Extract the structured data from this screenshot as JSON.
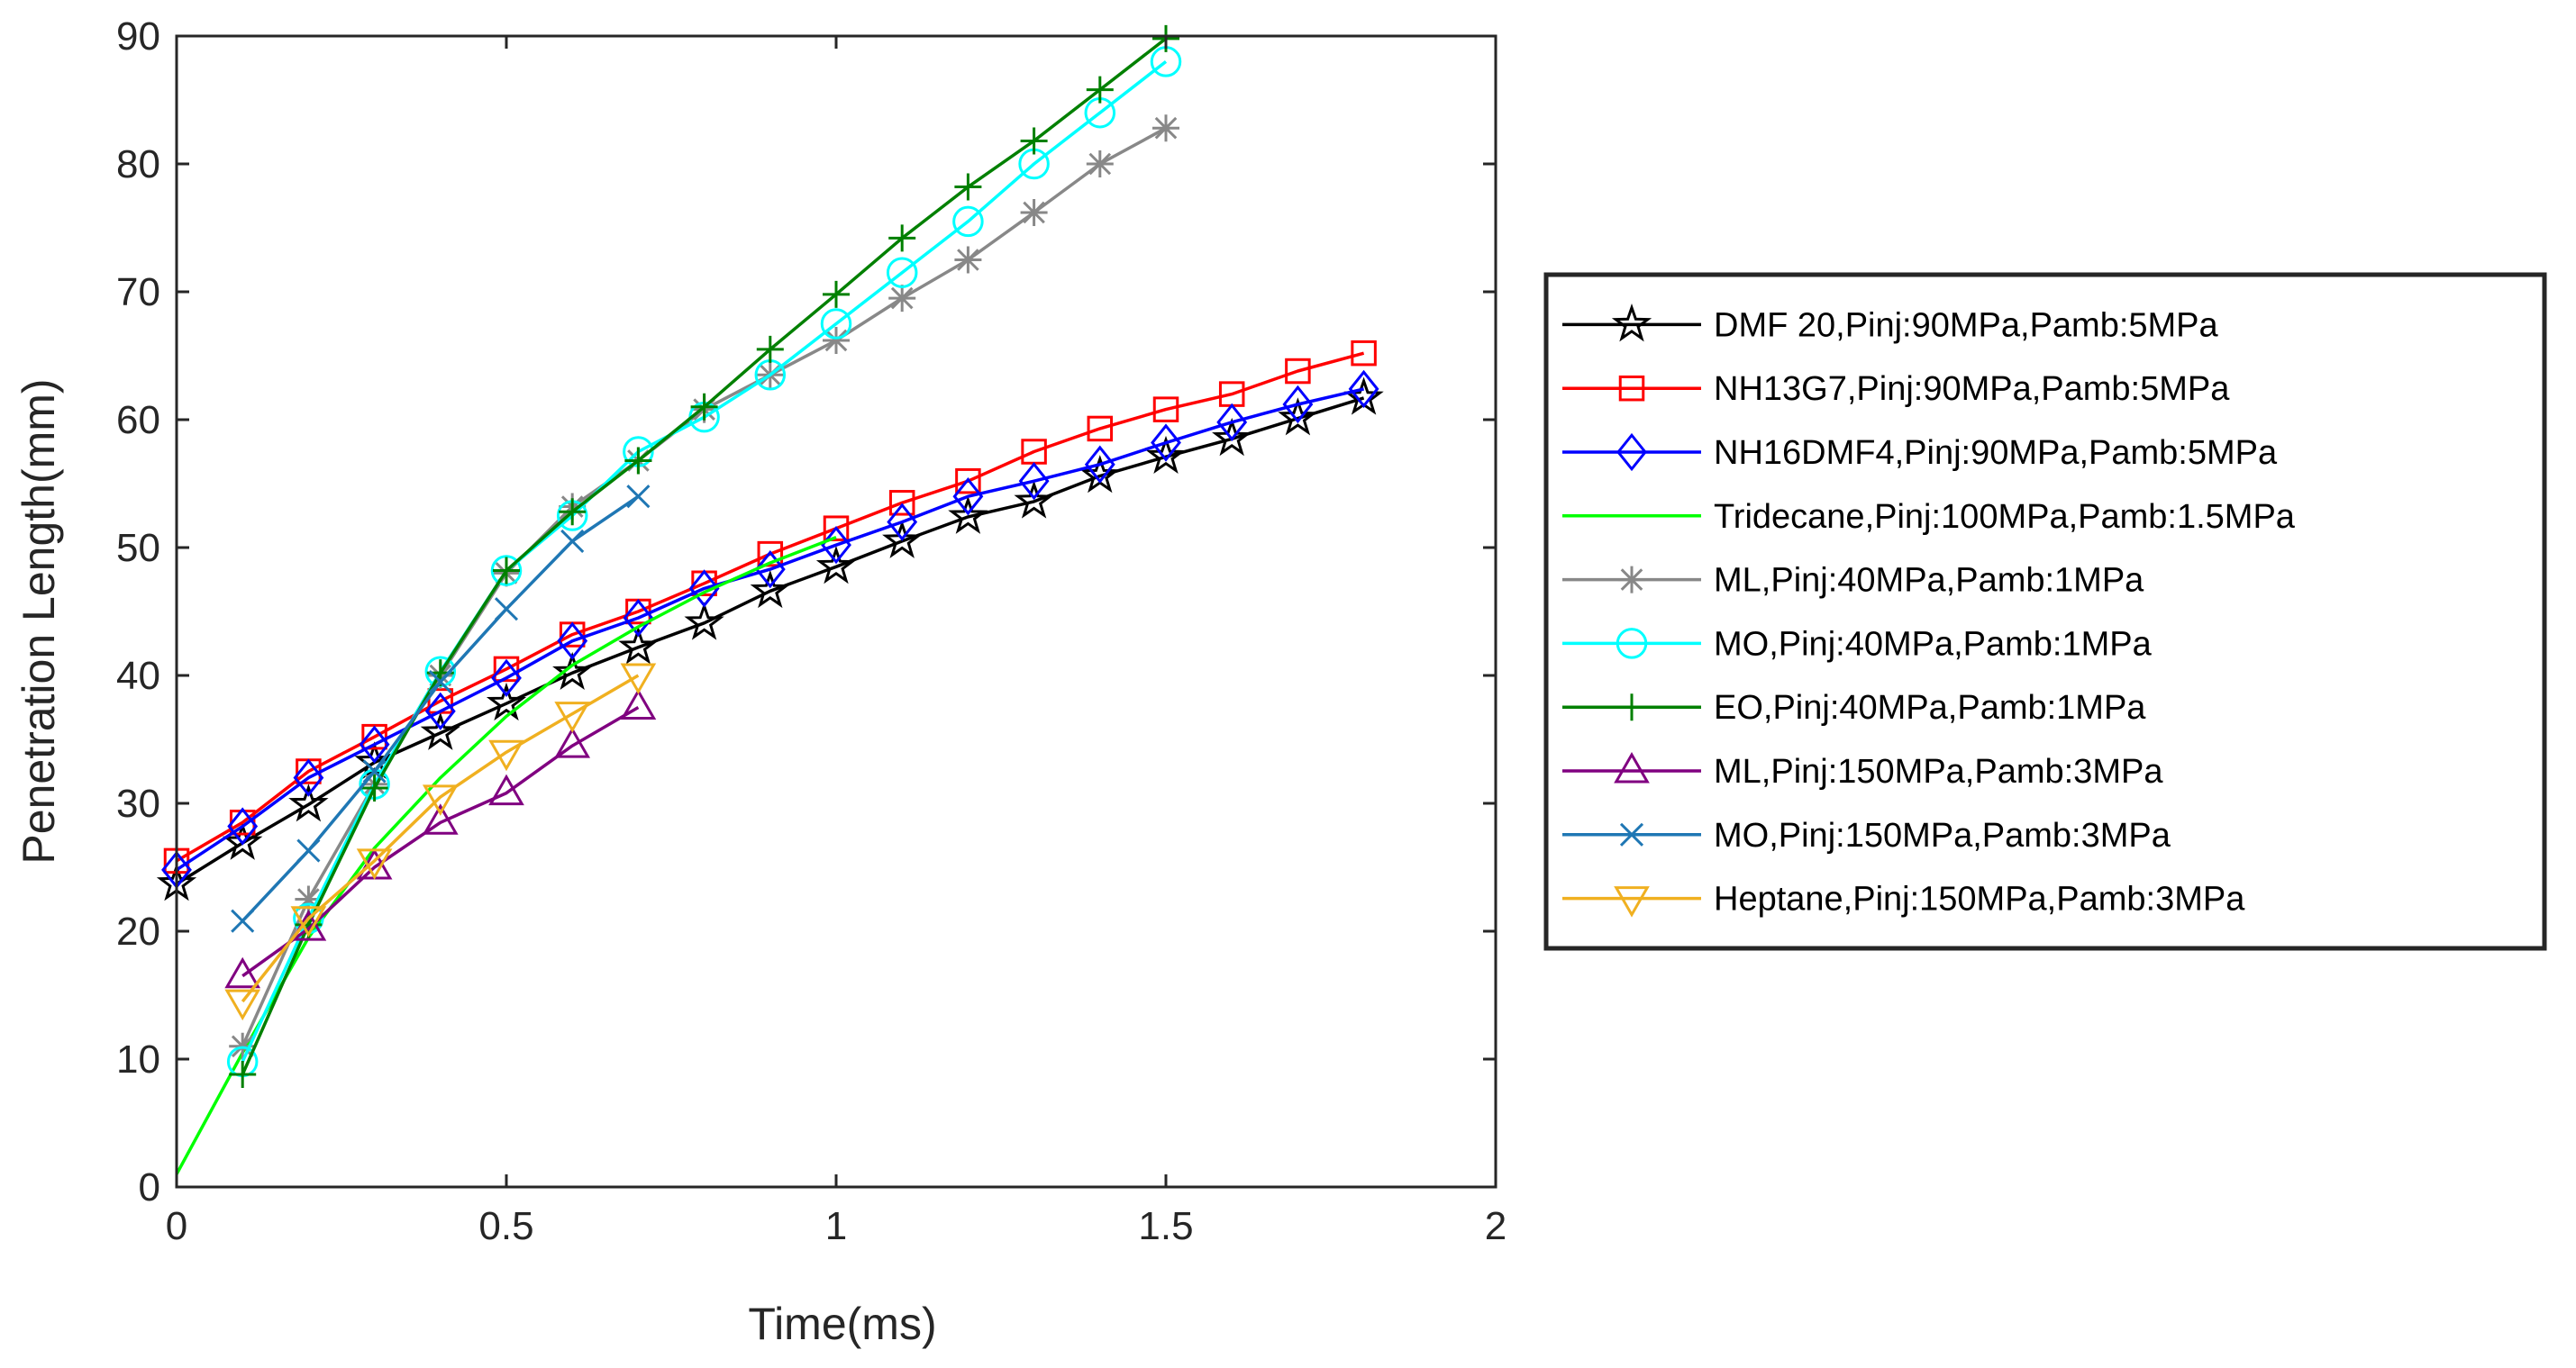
{
  "chart_data": {
    "type": "line",
    "title": "",
    "xlabel": "Time(ms)",
    "ylabel": "Penetration Length(mm)",
    "xlim": [
      0,
      2
    ],
    "ylim": [
      0,
      90
    ],
    "xticks": [
      0,
      0.5,
      1,
      1.5,
      2
    ],
    "xtick_labels": [
      "0",
      "0.5",
      "1",
      "1.5",
      "2"
    ],
    "yticks": [
      0,
      10,
      20,
      30,
      40,
      50,
      60,
      70,
      80,
      90
    ],
    "ytick_labels": [
      "0",
      "10",
      "20",
      "30",
      "40",
      "50",
      "60",
      "70",
      "80",
      "90"
    ],
    "grid": false,
    "legend_position": "outside-right",
    "series": [
      {
        "name": "DMF 20,Pinj:90MPa,Pamb:5MPa",
        "color": "#000000",
        "marker": "star",
        "x": [
          0,
          0.1,
          0.2,
          0.3,
          0.4,
          0.5,
          0.6,
          0.7,
          0.8,
          0.9,
          1.0,
          1.1,
          1.2,
          1.3,
          1.4,
          1.5,
          1.6,
          1.7,
          1.8
        ],
        "y": [
          23.7,
          26.9,
          29.9,
          33.2,
          35.5,
          37.8,
          40.2,
          42.2,
          44.1,
          46.6,
          48.5,
          50.5,
          52.4,
          53.6,
          55.6,
          57.1,
          58.5,
          60.1,
          61.7
        ]
      },
      {
        "name": "NH13G7,Pinj:90MPa,Pamb:5MPa",
        "color": "#ff0000",
        "marker": "square",
        "x": [
          0,
          0.1,
          0.2,
          0.3,
          0.4,
          0.5,
          0.6,
          0.7,
          0.8,
          0.9,
          1.0,
          1.1,
          1.2,
          1.3,
          1.4,
          1.5,
          1.6,
          1.7,
          1.8
        ],
        "y": [
          25.5,
          28.5,
          32.5,
          35.2,
          38.0,
          40.5,
          43.2,
          45.0,
          47.2,
          49.5,
          51.5,
          53.5,
          55.2,
          57.5,
          59.3,
          60.8,
          62.0,
          63.8,
          65.2
        ]
      },
      {
        "name": "NH16DMF4,Pinj:90MPa,Pamb:5MPa",
        "color": "#0000ff",
        "marker": "diamond",
        "x": [
          0,
          0.1,
          0.2,
          0.3,
          0.4,
          0.5,
          0.6,
          0.7,
          0.8,
          0.9,
          1.0,
          1.1,
          1.2,
          1.3,
          1.4,
          1.5,
          1.6,
          1.7,
          1.8
        ],
        "y": [
          24.8,
          28.2,
          32.0,
          34.6,
          37.2,
          39.8,
          42.7,
          44.5,
          46.8,
          48.3,
          50.2,
          52.0,
          54.0,
          55.2,
          56.5,
          58.2,
          59.8,
          61.2,
          62.4
        ]
      },
      {
        "name": "Tridecane,Pinj:100MPa,Pamb:1.5MPa",
        "color": "#00ff00",
        "marker": "none",
        "x": [
          0,
          0.1,
          0.2,
          0.3,
          0.4,
          0.5,
          0.6,
          0.7,
          0.8,
          0.9,
          1.0
        ],
        "y": [
          1.0,
          10.5,
          19.5,
          26.5,
          32.0,
          36.8,
          40.8,
          43.8,
          46.5,
          48.8,
          50.8
        ]
      },
      {
        "name": "ML,Pinj:40MPa,Pamb:1MPa",
        "color": "#888888",
        "marker": "asterisk",
        "x": [
          0.1,
          0.2,
          0.3,
          0.4,
          0.5,
          0.6,
          0.7,
          0.8,
          0.9,
          1.0,
          1.1,
          1.2,
          1.3,
          1.4,
          1.5
        ],
        "y": [
          11.0,
          22.5,
          31.5,
          40.0,
          48.0,
          53.2,
          56.8,
          60.8,
          63.5,
          66.2,
          69.5,
          72.5,
          76.2,
          80.0,
          82.8
        ]
      },
      {
        "name": "MO,Pinj:40MPa,Pamb:1MPa",
        "color": "#00ffff",
        "marker": "circle",
        "x": [
          0.1,
          0.2,
          0.3,
          0.4,
          0.5,
          0.6,
          0.7,
          0.8,
          0.9,
          1.0,
          1.1,
          1.2,
          1.3,
          1.4,
          1.5
        ],
        "y": [
          9.8,
          21.0,
          31.5,
          40.3,
          48.2,
          52.5,
          57.5,
          60.2,
          63.5,
          67.5,
          71.5,
          75.5,
          80.0,
          84.0,
          88.0
        ]
      },
      {
        "name": "EO,Pinj:40MPa,Pamb:1MPa",
        "color": "#008000",
        "marker": "plus",
        "x": [
          0.1,
          0.2,
          0.3,
          0.4,
          0.5,
          0.6,
          0.7,
          0.8,
          0.9,
          1.0,
          1.1,
          1.2,
          1.3,
          1.4,
          1.5
        ],
        "y": [
          8.8,
          20.5,
          31.2,
          40.2,
          48.2,
          52.8,
          56.8,
          61.0,
          65.5,
          69.8,
          74.2,
          78.2,
          81.8,
          85.8,
          89.8
        ]
      },
      {
        "name": "ML,Pinj:150MPa,Pamb:3MPa",
        "color": "#800080",
        "marker": "triangle-up",
        "x": [
          0.1,
          0.2,
          0.3,
          0.4,
          0.5,
          0.6,
          0.7
        ],
        "y": [
          16.5,
          20.2,
          25.0,
          28.5,
          30.8,
          34.5,
          37.5
        ]
      },
      {
        "name": "MO,Pinj:150MPa,Pamb:3MPa",
        "color": "#1f77b4",
        "marker": "x",
        "x": [
          0.1,
          0.2,
          0.3,
          0.4,
          0.5,
          0.6,
          0.7
        ],
        "y": [
          20.8,
          26.3,
          32.5,
          39.5,
          45.2,
          50.5,
          54.0
        ]
      },
      {
        "name": "Heptane,Pinj:150MPa,Pamb:3MPa",
        "color": "#f0b020",
        "marker": "triangle-down",
        "x": [
          0.1,
          0.2,
          0.3,
          0.4,
          0.5,
          0.6,
          0.7
        ],
        "y": [
          14.5,
          21.0,
          25.5,
          30.5,
          34.0,
          37.0,
          40.0
        ]
      }
    ]
  }
}
